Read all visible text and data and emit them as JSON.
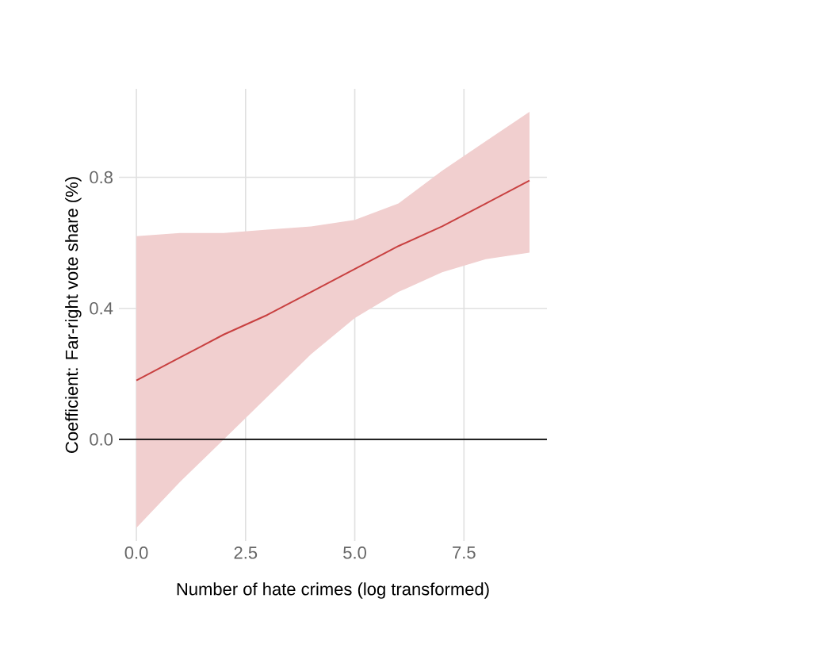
{
  "chart_data": {
    "type": "line",
    "xlabel": "Number of hate crimes (log transformed)",
    "ylabel": "Coefficient: Far-right vote share (%)",
    "x": [
      0,
      1,
      2,
      3,
      4,
      5,
      6,
      7,
      8,
      9
    ],
    "series": [
      {
        "color": "#c84040",
        "values": [
          0.18,
          0.25,
          0.32,
          0.38,
          0.45,
          0.52,
          0.59,
          0.65,
          0.72,
          0.79
        ],
        "lower": [
          -0.27,
          -0.13,
          0.0,
          0.13,
          0.26,
          0.37,
          0.45,
          0.51,
          0.55,
          0.57
        ],
        "upper": [
          0.62,
          0.63,
          0.63,
          0.64,
          0.65,
          0.67,
          0.72,
          0.82,
          0.91,
          1.0
        ]
      }
    ],
    "xlim": [
      -0.4,
      9.4
    ],
    "ylim": [
      -0.31,
      1.07
    ],
    "xticks": [
      {
        "value": 0,
        "label": "0.0"
      },
      {
        "value": 2.5,
        "label": "2.5"
      },
      {
        "value": 5,
        "label": "5.0"
      },
      {
        "value": 7.5,
        "label": "7.5"
      }
    ],
    "yticks": [
      {
        "value": 0,
        "label": "0.0"
      },
      {
        "value": 0.4,
        "label": "0.4"
      },
      {
        "value": 0.8,
        "label": "0.8"
      }
    ],
    "grid": true,
    "ref_lines": [
      {
        "axis": "y",
        "value": 0,
        "color": "#000000"
      }
    ]
  }
}
